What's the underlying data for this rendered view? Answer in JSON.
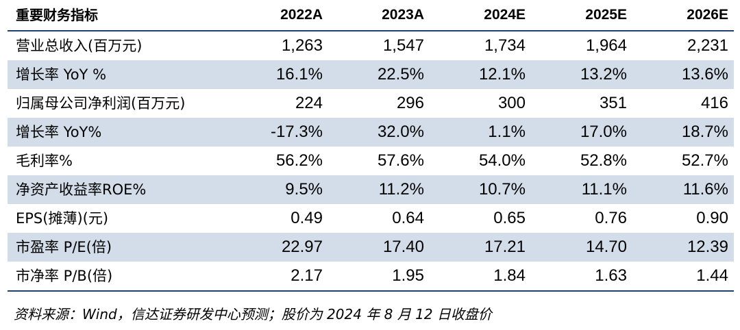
{
  "table": {
    "header_label": "重要财务指标",
    "years": [
      "2022A",
      "2023A",
      "2024E",
      "2025E",
      "2026E"
    ],
    "rows": [
      {
        "label": "营业总收入(百万元)",
        "values": [
          "1,263",
          "1,547",
          "1,734",
          "1,964",
          "2,231"
        ],
        "shaded": false
      },
      {
        "label": "增长率 YoY %",
        "values": [
          "16.1%",
          "22.5%",
          "12.1%",
          "13.2%",
          "13.6%"
        ],
        "shaded": true
      },
      {
        "label": "归属母公司净利润(百万元)",
        "values": [
          "224",
          "296",
          "300",
          "351",
          "416"
        ],
        "shaded": false
      },
      {
        "label": "增长率 YoY%",
        "values": [
          "-17.3%",
          "32.0%",
          "1.1%",
          "17.0%",
          "18.7%"
        ],
        "shaded": true
      },
      {
        "label": "毛利率%",
        "values": [
          "56.2%",
          "57.6%",
          "54.0%",
          "52.8%",
          "52.7%"
        ],
        "shaded": false
      },
      {
        "label": "净资产收益率ROE%",
        "values": [
          "9.5%",
          "11.2%",
          "10.7%",
          "11.1%",
          "11.6%"
        ],
        "shaded": true
      },
      {
        "label": "EPS(摊薄)(元)",
        "values": [
          "0.49",
          "0.64",
          "0.65",
          "0.76",
          "0.90"
        ],
        "shaded": false
      },
      {
        "label": "市盈率 P/E(倍)",
        "values": [
          "22.97",
          "17.40",
          "17.21",
          "14.70",
          "12.39"
        ],
        "shaded": true
      },
      {
        "label": "市净率 P/B(倍)",
        "values": [
          "2.17",
          "1.95",
          "1.84",
          "1.63",
          "1.44"
        ],
        "shaded": false
      }
    ]
  },
  "source_note": "资料来源：Wind，信达证券研发中心预测；股价为 2024 年 8 月 12 日收盘价",
  "colors": {
    "shaded_row": "#d3dde9",
    "rule_line": "#1f3f6e"
  }
}
